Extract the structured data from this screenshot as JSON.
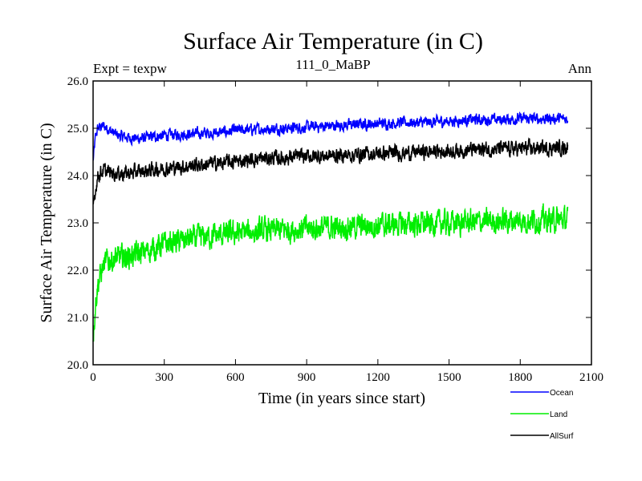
{
  "chart_data": {
    "type": "line",
    "title": "Surface Air Temperature (in C)",
    "subtitle": "111_0_MaBP",
    "left_label": "Expt = texpw",
    "right_label": "Ann",
    "xlabel": "Time (in years since start)",
    "ylabel": "Surface Air Temperature (in C)",
    "xlim": [
      0,
      2100
    ],
    "ylim": [
      20.0,
      26.0
    ],
    "x_ticks": [
      0,
      300,
      600,
      900,
      1200,
      1500,
      1800,
      2100
    ],
    "x_tick_labels": [
      "0",
      "300",
      "600",
      "900",
      "1200",
      "1500",
      "1800",
      "2100"
    ],
    "y_ticks": [
      20.0,
      21.0,
      22.0,
      23.0,
      24.0,
      25.0,
      26.0
    ],
    "y_tick_labels": [
      "20.0",
      "21.0",
      "22.0",
      "23.0",
      "24.0",
      "25.0",
      "26.0"
    ],
    "grid": false,
    "legend_position": "bottom-right, below plot",
    "series": [
      {
        "name": "Ocean",
        "color": "#0000ff",
        "x": [
          0,
          10,
          20,
          40,
          60,
          100,
          150,
          200,
          250,
          300,
          400,
          500,
          550,
          600,
          700,
          800,
          900,
          1000,
          1100,
          1200,
          1300,
          1400,
          1500,
          1600,
          1700,
          1800,
          1900,
          2000
        ],
        "y": [
          24.3,
          24.8,
          25.0,
          25.05,
          25.0,
          24.85,
          24.8,
          24.78,
          24.82,
          24.85,
          24.88,
          24.9,
          24.92,
          24.95,
          24.98,
          25.0,
          25.02,
          25.05,
          25.08,
          25.1,
          25.12,
          25.12,
          25.15,
          25.18,
          25.18,
          25.2,
          25.2,
          25.2
        ],
        "noise": 0.09
      },
      {
        "name": "Land",
        "color": "#00ee00",
        "x": [
          0,
          10,
          20,
          40,
          60,
          100,
          150,
          200,
          250,
          300,
          400,
          500,
          600,
          700,
          800,
          900,
          1000,
          1100,
          1200,
          1300,
          1400,
          1500,
          1600,
          1700,
          1800,
          1900,
          2000
        ],
        "y": [
          20.6,
          21.3,
          21.7,
          22.05,
          22.2,
          22.25,
          22.3,
          22.35,
          22.45,
          22.55,
          22.65,
          22.72,
          22.78,
          22.82,
          22.85,
          22.88,
          22.9,
          22.92,
          22.95,
          22.97,
          22.98,
          23.0,
          23.02,
          23.03,
          23.05,
          23.06,
          23.07
        ],
        "noise": 0.2
      },
      {
        "name": "AllSurf",
        "color": "#000000",
        "x": [
          0,
          10,
          20,
          40,
          60,
          100,
          150,
          200,
          250,
          300,
          400,
          500,
          600,
          700,
          800,
          900,
          1000,
          1100,
          1200,
          1300,
          1400,
          1500,
          1600,
          1700,
          1800,
          1900,
          2000
        ],
        "y": [
          23.3,
          23.7,
          24.0,
          24.1,
          24.08,
          24.05,
          24.05,
          24.08,
          24.12,
          24.15,
          24.2,
          24.25,
          24.3,
          24.35,
          24.38,
          24.4,
          24.42,
          24.44,
          24.46,
          24.48,
          24.5,
          24.52,
          24.55,
          24.56,
          24.57,
          24.58,
          24.6
        ],
        "noise": 0.12
      }
    ]
  }
}
